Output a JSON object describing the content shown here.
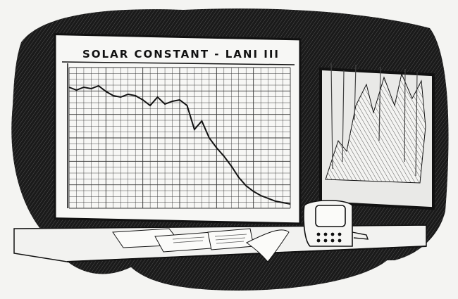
{
  "illustration": {
    "chart_title": "SOLAR CONSTANT - LANI III",
    "style": "black-and-white pen-and-ink illustration",
    "scene": "wall-mounted chart board beside a window showing jagged icy peaks, with a console device and loose papers on a desk",
    "colors": {
      "ink": "#111111",
      "paper": "#f4f4f2"
    }
  },
  "chart_data": {
    "type": "line",
    "title": "SOLAR CONSTANT - LANI III",
    "xlabel": "",
    "ylabel": "",
    "grid": true,
    "xlim": [
      0,
      30
    ],
    "ylim": [
      0,
      10
    ],
    "series": [
      {
        "x": [
          0,
          1,
          2,
          3,
          4,
          5,
          6,
          7,
          8,
          9,
          10,
          11,
          12,
          13,
          14,
          15,
          16,
          17,
          18,
          19,
          20,
          21,
          22,
          23,
          24,
          25,
          26,
          27,
          28,
          29,
          30
        ],
        "values": [
          8.6,
          8.4,
          8.6,
          8.5,
          8.7,
          8.3,
          8.0,
          7.9,
          8.1,
          8.0,
          7.7,
          7.3,
          7.9,
          7.4,
          7.6,
          7.7,
          7.3,
          5.6,
          6.2,
          5.0,
          4.3,
          3.7,
          3.0,
          2.2,
          1.6,
          1.2,
          0.9,
          0.7,
          0.5,
          0.4,
          0.3
        ]
      }
    ]
  }
}
